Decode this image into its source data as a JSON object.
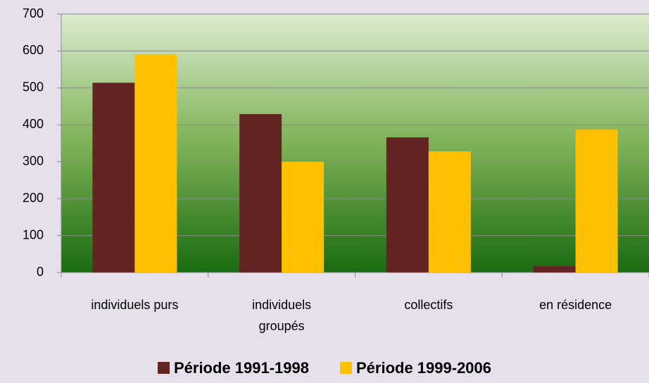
{
  "chart_data": {
    "type": "bar",
    "categories": [
      "individuels purs",
      "individuels groupés",
      "collectifs",
      "en résidence"
    ],
    "series": [
      {
        "name": "Période 1991-1998",
        "color": "#632523",
        "values": [
          514,
          429,
          366,
          17
        ]
      },
      {
        "name": "Période 1999-2006",
        "color": "#ffc000",
        "values": [
          590,
          300,
          328,
          387
        ]
      }
    ],
    "ylim": [
      0,
      700
    ],
    "yticks": [
      0,
      100,
      200,
      300,
      400,
      500,
      600,
      700
    ],
    "grid": true,
    "legend": "bottom"
  }
}
